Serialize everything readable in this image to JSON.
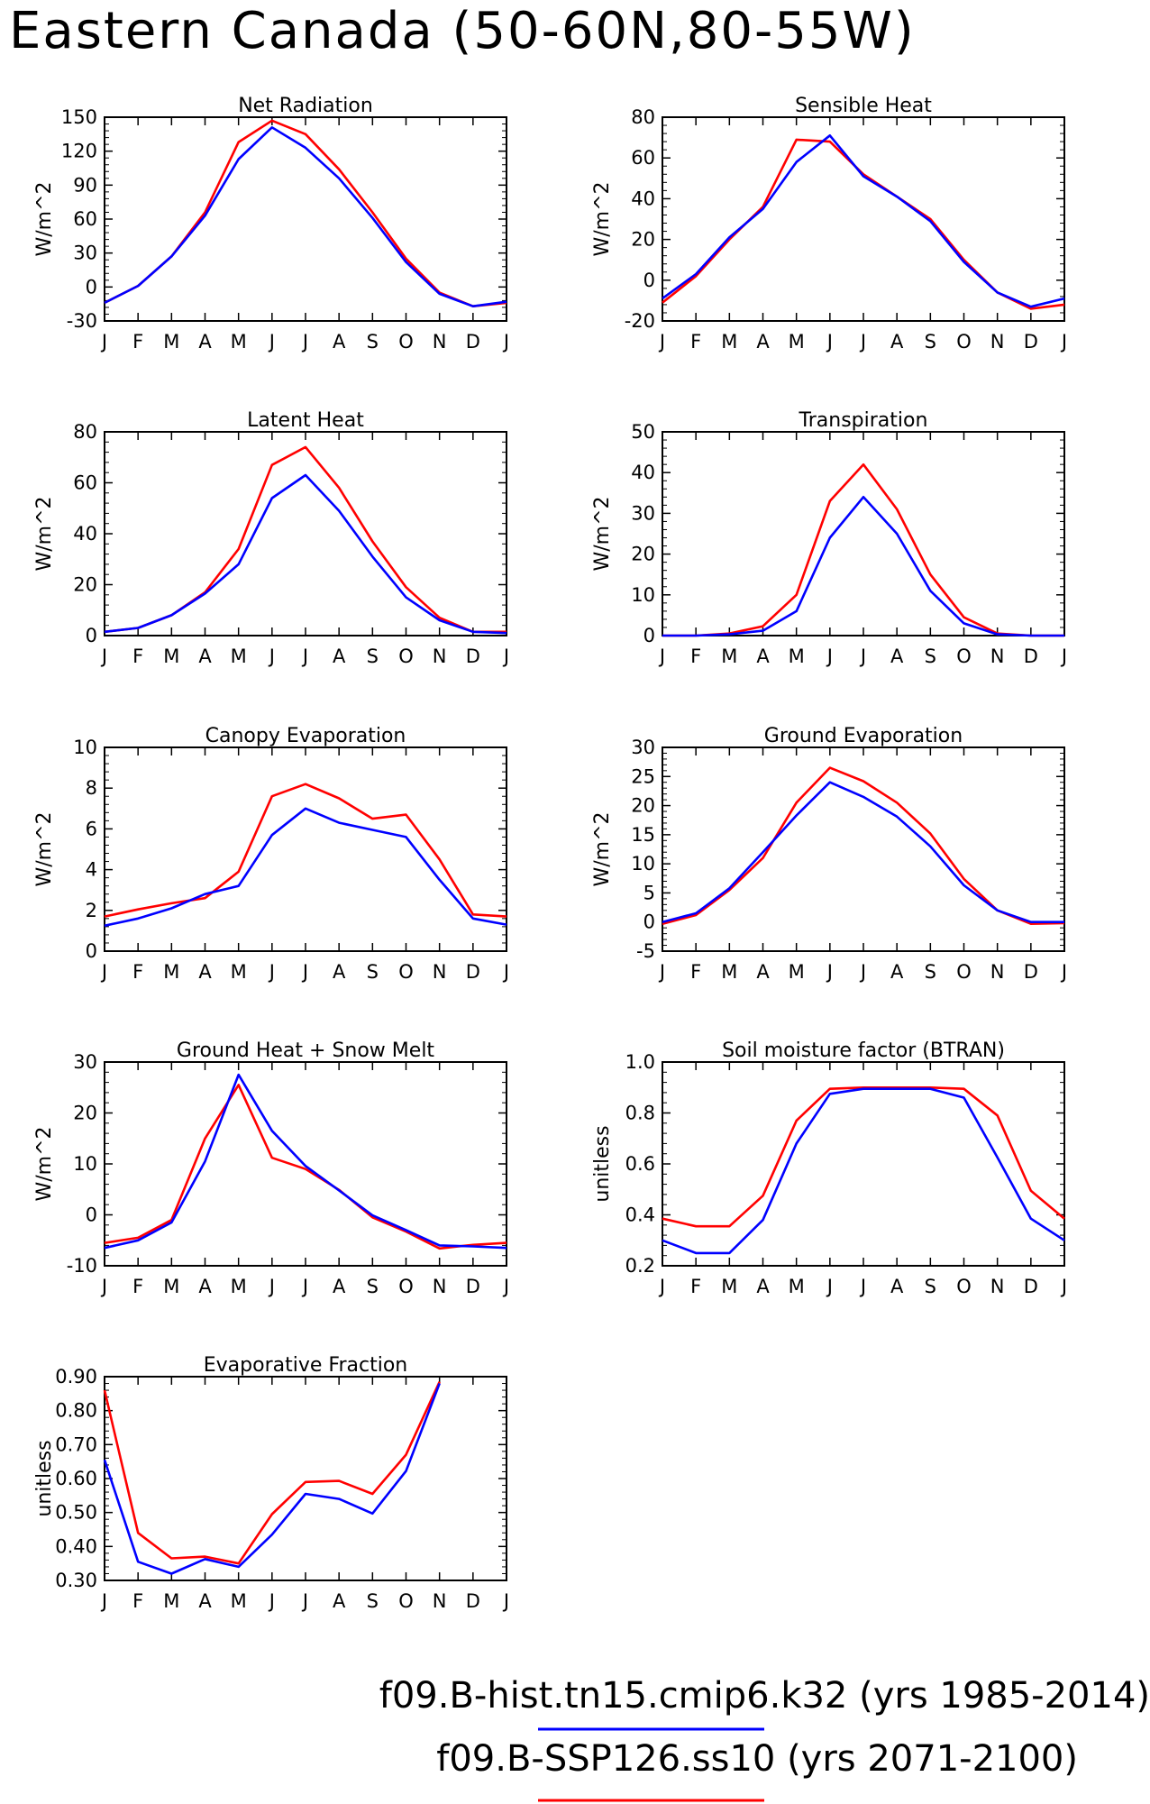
{
  "page_title": "Eastern Canada (50-60N,80-55W)",
  "colors": {
    "hist": "#0000ff",
    "ssp": "#ff0000",
    "frame": "#000000",
    "background": "#ffffff"
  },
  "legend": [
    {
      "label": "f09.B-hist.tn15.cmip6.k32 (yrs 1985-2014)",
      "color": "#0000ff"
    },
    {
      "label": "f09.B-SSP126.ss10 (yrs 2071-2100)",
      "color": "#ff0000"
    }
  ],
  "chart_data": [
    {
      "type": "line",
      "title": "Net Radiation",
      "xlabel": "",
      "ylabel": "W/m^2",
      "categories": [
        "J",
        "F",
        "M",
        "A",
        "M",
        "J",
        "J",
        "A",
        "S",
        "O",
        "N",
        "D",
        "J"
      ],
      "ylim": [
        -30,
        150
      ],
      "yticks": [
        -30,
        0,
        30,
        60,
        90,
        120,
        150
      ],
      "ytick_labels": [
        "-30",
        "0",
        "30",
        "60",
        "90",
        "120",
        "150"
      ],
      "grid": false,
      "series": [
        {
          "color": "#ff0000",
          "values": [
            -14,
            1,
            27,
            66,
            128,
            147,
            135,
            104,
            66,
            25,
            -5,
            -17,
            -14
          ]
        },
        {
          "color": "#0000ff",
          "values": [
            -14,
            1,
            27,
            63,
            113,
            141,
            123,
            96,
            61,
            22,
            -6,
            -17,
            -13
          ]
        }
      ]
    },
    {
      "type": "line",
      "title": "Sensible Heat",
      "xlabel": "",
      "ylabel": "W/m^2",
      "categories": [
        "J",
        "F",
        "M",
        "A",
        "M",
        "J",
        "J",
        "A",
        "S",
        "O",
        "N",
        "D",
        "J"
      ],
      "ylim": [
        -20,
        80
      ],
      "yticks": [
        -20,
        0,
        20,
        40,
        60,
        80
      ],
      "ytick_labels": [
        "-20",
        "0",
        "20",
        "40",
        "60",
        "80"
      ],
      "grid": false,
      "series": [
        {
          "color": "#ff0000",
          "values": [
            -11,
            2,
            20,
            36,
            69,
            68,
            52,
            41,
            30,
            10,
            -6,
            -14,
            -12
          ]
        },
        {
          "color": "#0000ff",
          "values": [
            -9,
            3,
            21,
            35,
            58,
            71,
            51,
            41,
            29,
            9,
            -6,
            -13,
            -9
          ]
        }
      ]
    },
    {
      "type": "line",
      "title": "Latent Heat",
      "xlabel": "",
      "ylabel": "W/m^2",
      "categories": [
        "J",
        "F",
        "M",
        "A",
        "M",
        "J",
        "J",
        "A",
        "S",
        "O",
        "N",
        "D",
        "J"
      ],
      "ylim": [
        0,
        80
      ],
      "yticks": [
        0,
        20,
        40,
        60,
        80
      ],
      "ytick_labels": [
        "0",
        "20",
        "40",
        "60",
        "80"
      ],
      "grid": false,
      "series": [
        {
          "color": "#ff0000",
          "values": [
            1.5,
            3,
            8,
            17,
            34,
            67,
            74,
            58,
            37,
            19,
            7,
            1.5,
            1.5
          ]
        },
        {
          "color": "#0000ff",
          "values": [
            1.5,
            3,
            8,
            16.5,
            28,
            54,
            63,
            49,
            31,
            15,
            6,
            1.5,
            1
          ]
        }
      ]
    },
    {
      "type": "line",
      "title": "Transpiration",
      "xlabel": "",
      "ylabel": "W/m^2",
      "categories": [
        "J",
        "F",
        "M",
        "A",
        "M",
        "J",
        "J",
        "A",
        "S",
        "O",
        "N",
        "D",
        "J"
      ],
      "ylim": [
        0,
        50
      ],
      "yticks": [
        0,
        10,
        20,
        30,
        40,
        50
      ],
      "ytick_labels": [
        "0",
        "10",
        "20",
        "30",
        "40",
        "50"
      ],
      "grid": false,
      "series": [
        {
          "color": "#ff0000",
          "values": [
            0,
            0,
            0.5,
            2.3,
            10,
            33,
            42,
            31,
            15,
            4.5,
            0.5,
            0,
            0
          ]
        },
        {
          "color": "#0000ff",
          "values": [
            0,
            0,
            0.3,
            1.2,
            6,
            24,
            34,
            25,
            11,
            3,
            0.3,
            0,
            0
          ]
        }
      ]
    },
    {
      "type": "line",
      "title": "Canopy Evaporation",
      "xlabel": "",
      "ylabel": "W/m^2",
      "categories": [
        "J",
        "F",
        "M",
        "A",
        "M",
        "J",
        "J",
        "A",
        "S",
        "O",
        "N",
        "D",
        "J"
      ],
      "ylim": [
        0,
        10
      ],
      "yticks": [
        0,
        2,
        4,
        6,
        8,
        10
      ],
      "ytick_labels": [
        "0",
        "2",
        "4",
        "6",
        "8",
        "10"
      ],
      "grid": false,
      "series": [
        {
          "color": "#ff0000",
          "values": [
            1.7,
            2.05,
            2.35,
            2.6,
            3.9,
            7.6,
            8.2,
            7.5,
            6.5,
            6.7,
            4.5,
            1.8,
            1.7
          ]
        },
        {
          "color": "#0000ff",
          "values": [
            1.25,
            1.6,
            2.1,
            2.8,
            3.2,
            5.7,
            7.0,
            6.3,
            5.95,
            5.6,
            3.5,
            1.6,
            1.3
          ]
        }
      ]
    },
    {
      "type": "line",
      "title": "Ground Evaporation",
      "xlabel": "",
      "ylabel": "W/m^2",
      "categories": [
        "J",
        "F",
        "M",
        "A",
        "M",
        "J",
        "J",
        "A",
        "S",
        "O",
        "N",
        "D",
        "J"
      ],
      "ylim": [
        -5,
        30
      ],
      "yticks": [
        -5,
        0,
        5,
        10,
        15,
        20,
        25,
        30
      ],
      "ytick_labels": [
        "-5",
        "0",
        "5",
        "10",
        "15",
        "20",
        "25",
        "30"
      ],
      "grid": false,
      "series": [
        {
          "color": "#ff0000",
          "values": [
            -0.3,
            1.2,
            5.5,
            11,
            20.5,
            26.5,
            24.2,
            20.5,
            15.2,
            7.4,
            2,
            -0.3,
            -0.2
          ]
        },
        {
          "color": "#0000ff",
          "values": [
            0,
            1.5,
            5.8,
            12,
            18.3,
            24,
            21.5,
            18.1,
            13,
            6.3,
            2,
            0,
            0
          ]
        }
      ]
    },
    {
      "type": "line",
      "title": "Ground Heat + Snow Melt",
      "xlabel": "",
      "ylabel": "W/m^2",
      "categories": [
        "J",
        "F",
        "M",
        "A",
        "M",
        "J",
        "J",
        "A",
        "S",
        "O",
        "N",
        "D",
        "J"
      ],
      "ylim": [
        -10,
        30
      ],
      "yticks": [
        -10,
        0,
        10,
        20,
        30
      ],
      "ytick_labels": [
        "-10",
        "0",
        "10",
        "20",
        "30"
      ],
      "grid": false,
      "series": [
        {
          "color": "#ff0000",
          "values": [
            -5.5,
            -4.5,
            -1,
            15,
            25.5,
            11.2,
            9,
            4.9,
            -0.5,
            -3.3,
            -6.6,
            -5.9,
            -5.5
          ]
        },
        {
          "color": "#0000ff",
          "values": [
            -6.5,
            -5,
            -1.5,
            10.5,
            27.5,
            16.5,
            9.6,
            4.8,
            -0.1,
            -3.0,
            -6.0,
            -6.2,
            -6.5
          ]
        }
      ]
    },
    {
      "type": "line",
      "title": "Soil moisture factor (BTRAN)",
      "xlabel": "",
      "ylabel": "unitless",
      "categories": [
        "J",
        "F",
        "M",
        "A",
        "M",
        "J",
        "J",
        "A",
        "S",
        "O",
        "N",
        "D",
        "J"
      ],
      "ylim": [
        0.2,
        1.0
      ],
      "yticks": [
        0.2,
        0.4,
        0.6,
        0.8,
        1.0
      ],
      "ytick_labels": [
        "0.2",
        "0.4",
        "0.6",
        "0.8",
        "1.0"
      ],
      "grid": false,
      "series": [
        {
          "color": "#ff0000",
          "values": [
            0.385,
            0.355,
            0.355,
            0.475,
            0.77,
            0.895,
            0.9,
            0.9,
            0.9,
            0.895,
            0.79,
            0.495,
            0.385
          ]
        },
        {
          "color": "#0000ff",
          "values": [
            0.3,
            0.25,
            0.25,
            0.38,
            0.68,
            0.875,
            0.895,
            0.895,
            0.895,
            0.86,
            0.625,
            0.385,
            0.3
          ]
        }
      ]
    },
    {
      "type": "line",
      "title": "Evaporative Fraction",
      "xlabel": "",
      "ylabel": "unitless",
      "categories": [
        "J",
        "F",
        "M",
        "A",
        "M",
        "J",
        "J",
        "A",
        "S",
        "O",
        "N",
        "D",
        "J"
      ],
      "ylim": [
        0.3,
        0.9
      ],
      "yticks": [
        0.3,
        0.4,
        0.5,
        0.6,
        0.7,
        0.8,
        0.9
      ],
      "ytick_labels": [
        "0.30",
        "0.40",
        "0.50",
        "0.60",
        "0.70",
        "0.80",
        "0.90"
      ],
      "grid": false,
      "series": [
        {
          "color": "#ff0000",
          "values": [
            0.86,
            0.44,
            0.365,
            0.37,
            0.35,
            0.495,
            0.59,
            0.593,
            0.555,
            0.67,
            0.885,
            null,
            null
          ]
        },
        {
          "color": "#0000ff",
          "values": [
            0.655,
            0.355,
            0.32,
            0.363,
            0.34,
            0.435,
            0.555,
            0.54,
            0.497,
            0.622,
            0.88,
            null,
            null
          ]
        }
      ]
    }
  ]
}
